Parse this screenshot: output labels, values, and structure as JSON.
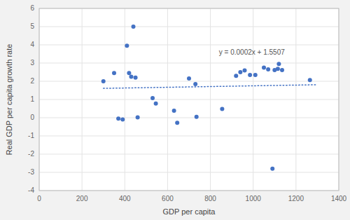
{
  "chart_data": {
    "type": "scatter",
    "x_label": "GDP per capita",
    "y_label": "Real GDP per capita growth rate",
    "x": [
      300,
      350,
      370,
      390,
      410,
      420,
      430,
      440,
      450,
      460,
      530,
      545,
      630,
      645,
      700,
      730,
      735,
      855,
      920,
      940,
      960,
      985,
      1010,
      1050,
      1070,
      1090,
      1100,
      1115,
      1120,
      1135,
      1265
    ],
    "values": [
      2.0,
      2.45,
      -0.05,
      -0.1,
      3.95,
      2.45,
      2.25,
      5.0,
      2.2,
      0.02,
      1.08,
      0.78,
      0.38,
      -0.28,
      2.15,
      1.85,
      0.05,
      0.48,
      2.3,
      2.5,
      2.6,
      2.35,
      2.35,
      2.75,
      2.65,
      -2.8,
      2.62,
      2.68,
      2.95,
      2.62,
      2.07
    ],
    "color": "#4472c4",
    "marker": "circle",
    "trendline": {
      "x": [
        300,
        1300
      ],
      "values": [
        1.6107,
        1.8107
      ],
      "color": "#4472c4",
      "line_style": "dotted"
    },
    "annotations": [
      {
        "text": "y = 0.0002x + 1.5507",
        "x": 840,
        "y": 3.55
      }
    ],
    "xlim": [
      0,
      1400
    ],
    "ylim": [
      -4,
      6
    ],
    "xticks": [
      0,
      200,
      400,
      600,
      800,
      1000,
      1200,
      1400
    ],
    "yticks": [
      -4,
      -3,
      -2,
      -1,
      0,
      1,
      2,
      3,
      4,
      5,
      6
    ],
    "grid": true
  }
}
